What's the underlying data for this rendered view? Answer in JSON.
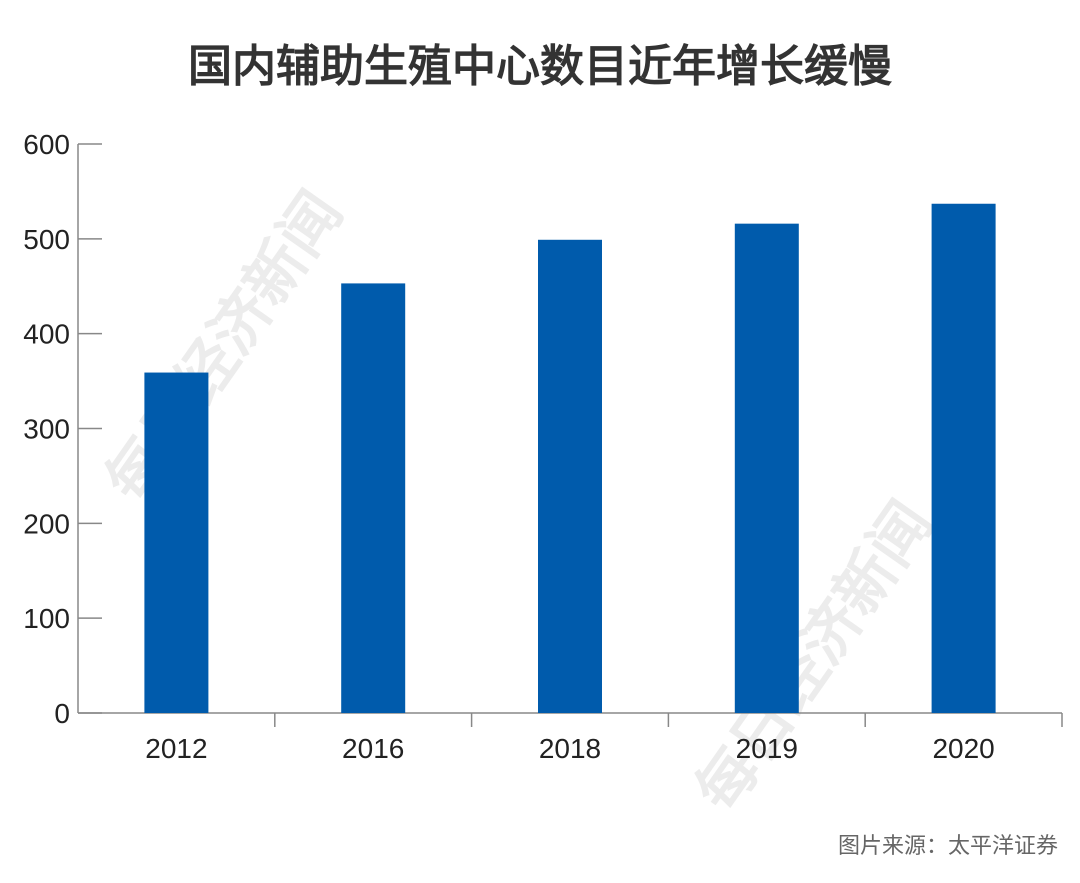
{
  "chart_data": {
    "type": "bar",
    "title": "国内辅助生殖中心数目近年增长缓慢",
    "categories": [
      "2012",
      "2016",
      "2018",
      "2019",
      "2020"
    ],
    "values": [
      359,
      453,
      499,
      516,
      537
    ],
    "ylim": [
      0,
      600
    ],
    "yticks": [
      0,
      100,
      200,
      300,
      400,
      500,
      600
    ],
    "xlabel": "",
    "ylabel": "",
    "grid": false,
    "bar_color": "#005BAC"
  },
  "source": "图片来源：太平洋证券",
  "watermark": "每日经济新闻"
}
